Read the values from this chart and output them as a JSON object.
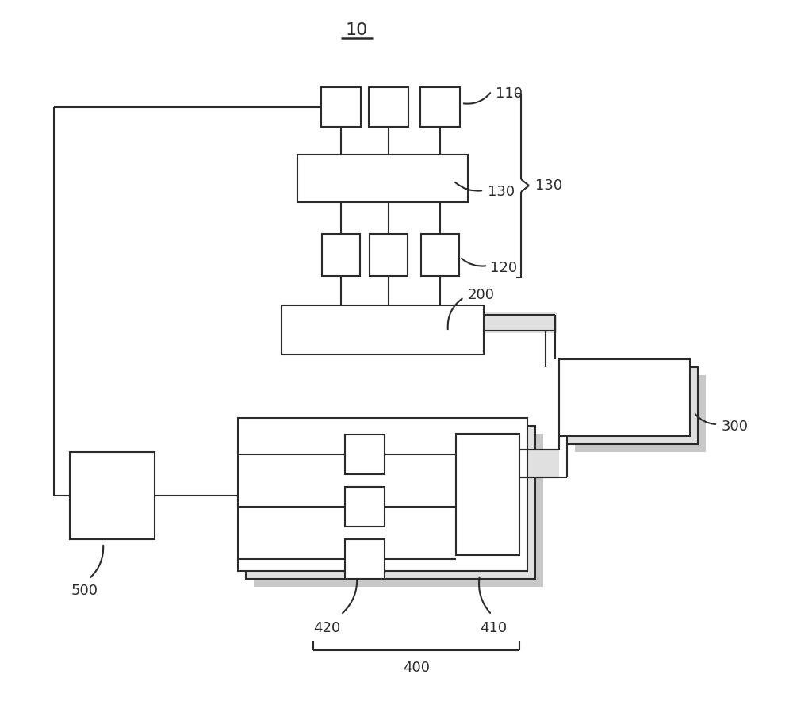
{
  "title": "10",
  "bg_color": "#ffffff",
  "label_110": "110",
  "label_120": "120",
  "label_130_inner": "130",
  "label_130_brace": "130",
  "label_200": "200",
  "label_300": "300",
  "label_400": "400",
  "label_410": "410",
  "label_420": "420",
  "label_500": "500",
  "line_color": "#2a2a2a",
  "gray_shadow": "#c8c8c8",
  "gray_shadow2": "#e0e0e0"
}
